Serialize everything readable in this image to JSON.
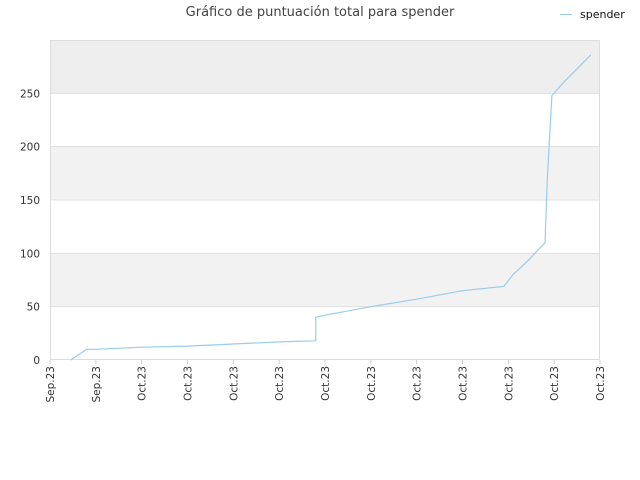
{
  "chart_data": {
    "type": "line",
    "title": "Gráfico de puntuación total para spender",
    "xlabel": "",
    "ylabel": "",
    "x_tick_labels": [
      "Sep.23",
      "Sep.23",
      "Oct.23",
      "Oct.23",
      "Oct.23",
      "Oct.23",
      "Oct.23",
      "Oct.23",
      "Oct.23",
      "Oct.23",
      "Oct.23",
      "Oct.23",
      "Oct.23"
    ],
    "y_ticks": [
      0,
      50,
      100,
      150,
      200,
      250
    ],
    "ylim": [
      0,
      300
    ],
    "grid": true,
    "legend_position": "top-right",
    "series": [
      {
        "name": "spender",
        "color": "#99CCEE",
        "points": [
          [
            0.45,
            0
          ],
          [
            0.8,
            10
          ],
          [
            1.0,
            10
          ],
          [
            2.0,
            12
          ],
          [
            3.0,
            13
          ],
          [
            4.0,
            15
          ],
          [
            5.0,
            17
          ],
          [
            5.8,
            18
          ],
          [
            5.8,
            40
          ],
          [
            6.0,
            42
          ],
          [
            7.0,
            50
          ],
          [
            8.0,
            57
          ],
          [
            9.0,
            65
          ],
          [
            9.9,
            69
          ],
          [
            10.1,
            80
          ],
          [
            10.4,
            92
          ],
          [
            10.8,
            110
          ],
          [
            10.85,
            170
          ],
          [
            10.95,
            248
          ],
          [
            11.2,
            260
          ],
          [
            11.8,
            286
          ]
        ]
      }
    ]
  }
}
